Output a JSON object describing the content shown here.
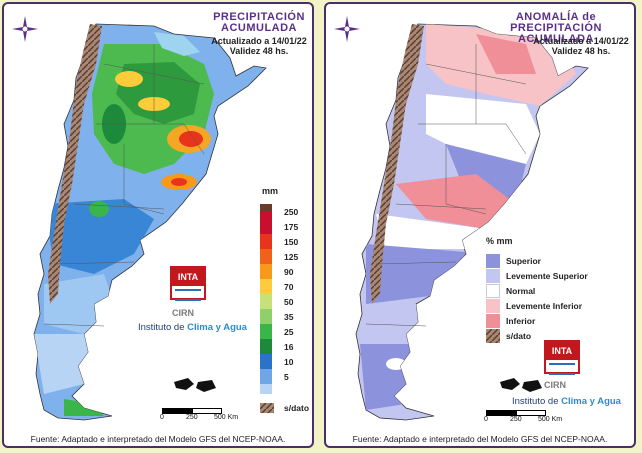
{
  "left": {
    "title_line1": "PRECIPITACIÓN",
    "title_line2": "ACUMULADA",
    "updated": "Actualizado a 14/01/22",
    "validity": "Validez 48 hs.",
    "legend_unit": "mm",
    "legend_values": [
      "250",
      "175",
      "150",
      "125",
      "90",
      "70",
      "50",
      "35",
      "25",
      "16",
      "10",
      "5",
      "s/dato"
    ],
    "legend_colors": [
      "#6b3a2a",
      "#c8102e",
      "#e8341c",
      "#f0621a",
      "#f79a1c",
      "#fccc3a",
      "#c7e07a",
      "#8fd06a",
      "#39b54a",
      "#1c8a3a",
      "#2b73c8",
      "#6ea6e8",
      "#b7d4f5",
      "#8a6a5a"
    ],
    "logo_text": "INTA",
    "cirn": "CIRN",
    "institute_prefix": "Instituto de ",
    "institute_highlight": "Clima y Agua",
    "scale": [
      "0",
      "250",
      "500 Km"
    ],
    "footer": "Fuente: Adaptado e interpretado del Modelo GFS del NCEP-NOAA."
  },
  "right": {
    "title_line1": "ANOMALÍA de",
    "title_line2": "PRECIPITACIÓN ACUMULADA",
    "updated": "Actualizado a 14/01/22",
    "validity": "Validez 48 hs.",
    "legend_unit": "% mm",
    "legend_items": [
      {
        "label": "Superior",
        "color": "#8c93dc"
      },
      {
        "label": "Levemente Superior",
        "color": "#c2c6f0"
      },
      {
        "label": "Normal",
        "color": "#ffffff"
      },
      {
        "label": "Levemente Inferior",
        "color": "#f7c3c7"
      },
      {
        "label": "Inferior",
        "color": "#f08f98"
      },
      {
        "label": "s/dato",
        "color": "#8a6a5a"
      }
    ],
    "logo_text": "INTA",
    "cirn": "CIRN",
    "institute_prefix": "Instituto de ",
    "institute_highlight": "Clima y Agua",
    "scale": [
      "0",
      "250",
      "500 Km"
    ],
    "footer": "Fuente: Adaptado e interpretado del Modelo GFS del NCEP-NOAA."
  },
  "icons": [
    "compass-rose-icon",
    "falkland-islands-map",
    "argentina-map"
  ]
}
